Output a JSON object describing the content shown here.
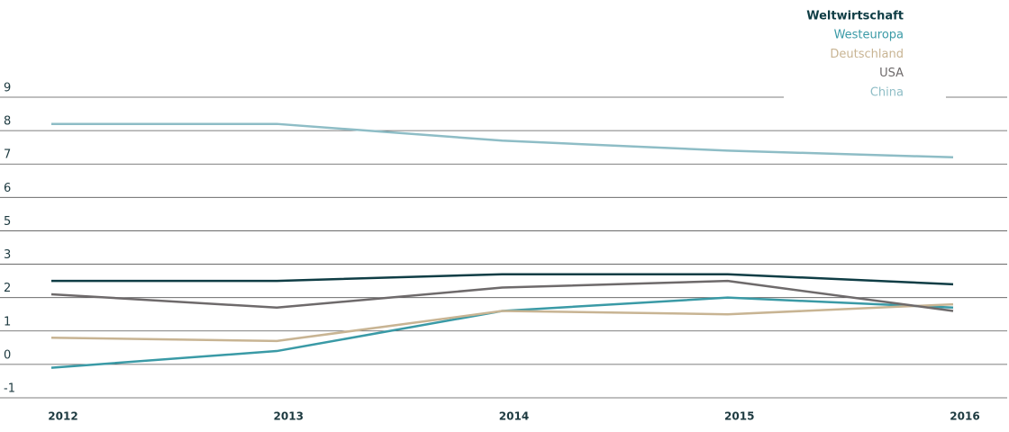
{
  "chart_data": {
    "type": "line",
    "categories": [
      "2012",
      "2013",
      "2014",
      "2015",
      "2016"
    ],
    "series": [
      {
        "name": "Weltwirtschaft",
        "color": "#0f3d45",
        "values": [
          2.5,
          2.5,
          2.7,
          2.7,
          2.4
        ]
      },
      {
        "name": "Westeuropa",
        "color": "#3a9aa6",
        "values": [
          -0.1,
          0.4,
          1.6,
          2.0,
          1.7
        ]
      },
      {
        "name": "Deutschland",
        "color": "#c8b493",
        "values": [
          0.8,
          0.7,
          1.6,
          1.5,
          1.8
        ]
      },
      {
        "name": "USA",
        "color": "#6e6a6b",
        "values": [
          2.1,
          1.7,
          2.3,
          2.5,
          1.6
        ]
      },
      {
        "name": "China",
        "color": "#8ebdc6",
        "values": [
          8.2,
          8.2,
          7.7,
          7.4,
          7.2
        ]
      }
    ],
    "ylim": [
      -1,
      9
    ],
    "yticks": [
      9,
      8,
      7,
      6,
      5,
      3,
      2,
      1,
      0,
      -1
    ],
    "grid": true,
    "legend": "top-right"
  }
}
